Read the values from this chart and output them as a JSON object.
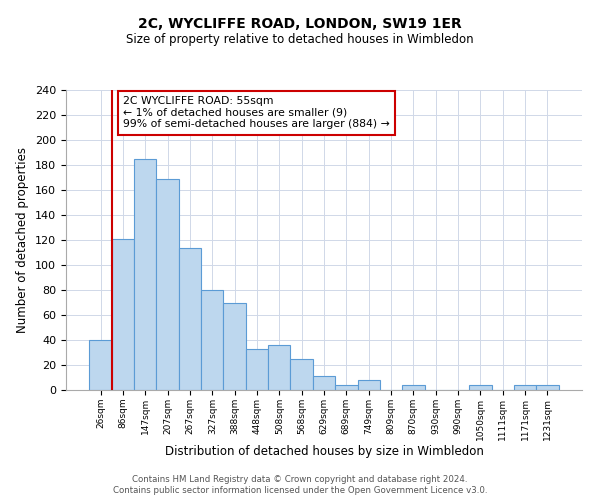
{
  "title": "2C, WYCLIFFE ROAD, LONDON, SW19 1ER",
  "subtitle": "Size of property relative to detached houses in Wimbledon",
  "xlabel": "Distribution of detached houses by size in Wimbledon",
  "ylabel": "Number of detached properties",
  "footer_line1": "Contains HM Land Registry data © Crown copyright and database right 2024.",
  "footer_line2": "Contains public sector information licensed under the Open Government Licence v3.0.",
  "annotation_title": "2C WYCLIFFE ROAD: 55sqm",
  "annotation_line2": "← 1% of detached houses are smaller (9)",
  "annotation_line3": "99% of semi-detached houses are larger (884) →",
  "bar_color": "#bdd7ee",
  "bar_edge_color": "#5b9bd5",
  "highlight_line_color": "#cc0000",
  "background_color": "#ffffff",
  "grid_color": "#d0d8e8",
  "categories": [
    "26sqm",
    "86sqm",
    "147sqm",
    "207sqm",
    "267sqm",
    "327sqm",
    "388sqm",
    "448sqm",
    "508sqm",
    "568sqm",
    "629sqm",
    "689sqm",
    "749sqm",
    "809sqm",
    "870sqm",
    "930sqm",
    "990sqm",
    "1050sqm",
    "1111sqm",
    "1171sqm",
    "1231sqm"
  ],
  "values": [
    40,
    121,
    185,
    169,
    114,
    80,
    70,
    33,
    36,
    25,
    11,
    4,
    8,
    0,
    4,
    0,
    0,
    4,
    0,
    4,
    4
  ],
  "ylim": [
    0,
    240
  ],
  "yticks": [
    0,
    20,
    40,
    60,
    80,
    100,
    120,
    140,
    160,
    180,
    200,
    220,
    240
  ],
  "figsize": [
    6.0,
    5.0
  ],
  "dpi": 100
}
